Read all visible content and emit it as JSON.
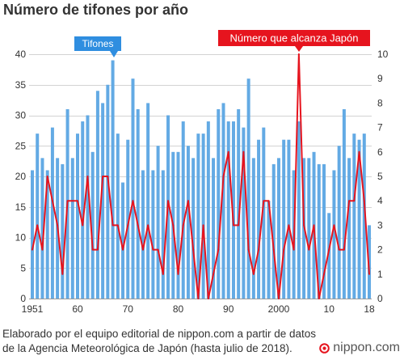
{
  "chart_data": {
    "type": "bar",
    "title": "Número de tifones por año",
    "x": [
      1951,
      1952,
      1953,
      1954,
      1955,
      1956,
      1957,
      1958,
      1959,
      1960,
      1961,
      1962,
      1963,
      1964,
      1965,
      1966,
      1967,
      1968,
      1969,
      1970,
      1971,
      1972,
      1973,
      1974,
      1975,
      1976,
      1977,
      1978,
      1979,
      1980,
      1981,
      1982,
      1983,
      1984,
      1985,
      1986,
      1987,
      1988,
      1989,
      1990,
      1991,
      1992,
      1993,
      1994,
      1995,
      1996,
      1997,
      1998,
      1999,
      2000,
      2001,
      2002,
      2003,
      2004,
      2005,
      2006,
      2007,
      2008,
      2009,
      2010,
      2011,
      2012,
      2013,
      2014,
      2015,
      2016,
      2017,
      2018
    ],
    "x_ticks": [
      {
        "value": 1951,
        "label": "1951"
      },
      {
        "value": 1960,
        "label": "60"
      },
      {
        "value": 1970,
        "label": "70"
      },
      {
        "value": 1980,
        "label": "80"
      },
      {
        "value": 1990,
        "label": "90"
      },
      {
        "value": 2000,
        "label": "2000"
      },
      {
        "value": 2010,
        "label": "10"
      },
      {
        "value": 2018,
        "label": "18"
      }
    ],
    "y_left": {
      "lim": [
        0,
        40
      ],
      "ticks": [
        0,
        5,
        10,
        15,
        20,
        25,
        30,
        35,
        40
      ]
    },
    "y_right": {
      "lim": [
        0,
        10
      ],
      "ticks": [
        0,
        1,
        2,
        3,
        4,
        5,
        6,
        7,
        8,
        9,
        10
      ]
    },
    "grid": true,
    "legend_position": "top",
    "series": [
      {
        "name": "Tifones",
        "type": "bar",
        "axis": "left",
        "color": "#63aae4",
        "label_color": "#2f8ee0",
        "values": [
          21,
          27,
          23,
          21,
          28,
          23,
          22,
          31,
          23,
          27,
          29,
          30,
          24,
          34,
          32,
          35,
          39,
          27,
          19,
          26,
          36,
          31,
          21,
          32,
          21,
          25,
          21,
          30,
          24,
          24,
          29,
          25,
          23,
          27,
          27,
          29,
          23,
          31,
          32,
          29,
          29,
          31,
          28,
          36,
          23,
          26,
          28,
          16,
          22,
          23,
          26,
          26,
          21,
          29,
          23,
          23,
          24,
          22,
          22,
          14,
          21,
          25,
          31,
          23,
          27,
          26,
          27,
          12
        ]
      },
      {
        "name": "Número que alcanza Japón",
        "type": "line",
        "axis": "right",
        "color": "#e6141e",
        "label_color": "#e6141e",
        "values": [
          2,
          3,
          2,
          5,
          4,
          3,
          1,
          4,
          4,
          4,
          3,
          5,
          2,
          2,
          5,
          5,
          3,
          3,
          2,
          3,
          4,
          3,
          2,
          3,
          2,
          2,
          1,
          4,
          3,
          1,
          3,
          4,
          2,
          0,
          3,
          0,
          1,
          2,
          5,
          6,
          3,
          3,
          6,
          2,
          1,
          2,
          4,
          4,
          2,
          0,
          2,
          3,
          2,
          10,
          3,
          2,
          3,
          0,
          1,
          2,
          3,
          2,
          2,
          4,
          4,
          6,
          4,
          1
        ]
      }
    ]
  },
  "footer": {
    "source_lines": [
      "Elaborado por el equipo editorial de nippon.com a partir de datos",
      "de la Agencia Meteorológica de Japón (hasta julio de 2018)."
    ]
  },
  "logo": {
    "text": "nippon.com",
    "icon": "nippon-logo-icon",
    "color": "#e6141e"
  }
}
